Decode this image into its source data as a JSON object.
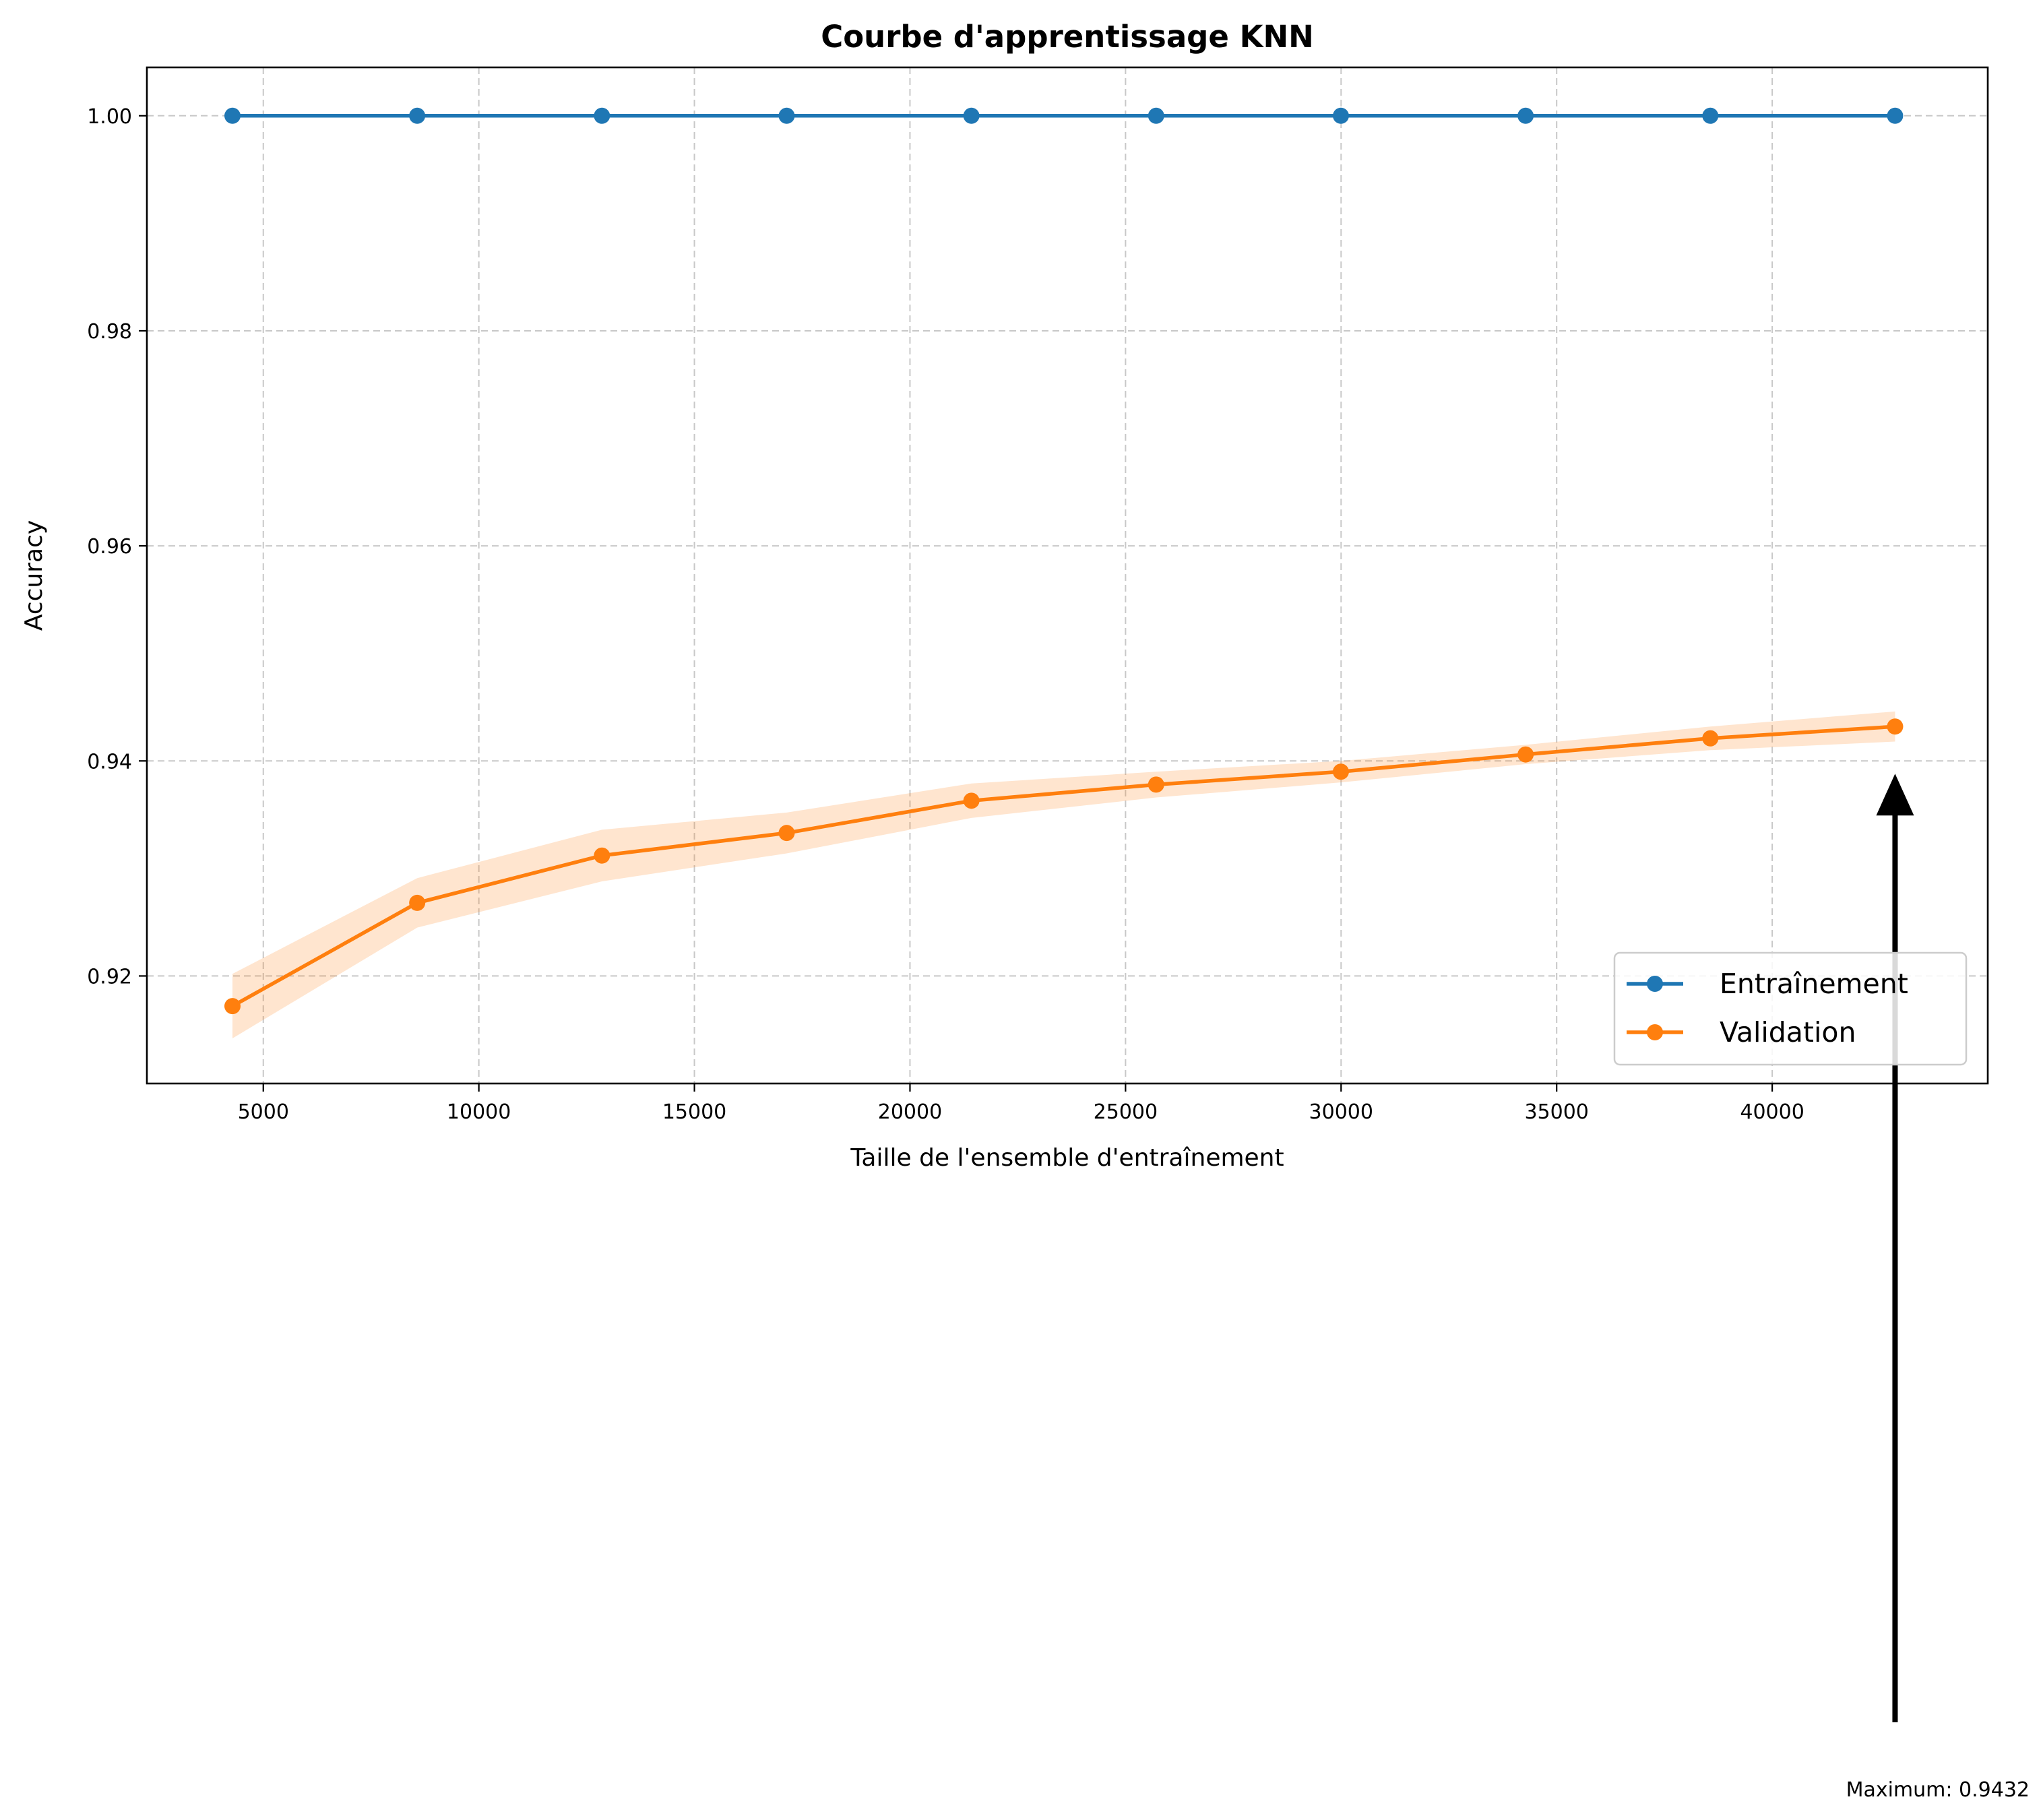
{
  "chart_data": {
    "type": "line",
    "title": "Courbe d'apprentissage KNN",
    "xlabel": "Taille de l'ensemble d'entraînement",
    "ylabel": "Accuracy",
    "xlim": [
      2300,
      45000
    ],
    "ylim": [
      0.91,
      1.0045
    ],
    "xticks": [
      5000,
      10000,
      15000,
      20000,
      25000,
      30000,
      35000,
      40000
    ],
    "xtick_labels": [
      "5000",
      "10000",
      "15000",
      "20000",
      "25000",
      "30000",
      "35000",
      "40000"
    ],
    "yticks": [
      0.92,
      0.94,
      0.96,
      0.98,
      1.0
    ],
    "ytick_labels": [
      "0.92",
      "0.94",
      "0.96",
      "0.98",
      "1.00"
    ],
    "grid": true,
    "legend_position": "lower-right",
    "x": [
      4285,
      8570,
      12855,
      17140,
      21425,
      25710,
      29995,
      34280,
      38565,
      42850
    ],
    "series": [
      {
        "name": "Entraînement",
        "color": "#1f77b4",
        "marker": "circle",
        "values": [
          1.0,
          1.0,
          1.0,
          1.0,
          1.0,
          1.0,
          1.0,
          1.0,
          1.0,
          1.0
        ]
      },
      {
        "name": "Validation",
        "color": "#ff7f0e",
        "marker": "circle",
        "values": [
          0.9172,
          0.9268,
          0.9312,
          0.9333,
          0.9363,
          0.9378,
          0.939,
          0.9406,
          0.9421,
          0.9432
        ],
        "band_lower": [
          0.9142,
          0.9245,
          0.9288,
          0.9314,
          0.9347,
          0.9366,
          0.938,
          0.9397,
          0.941,
          0.9418
        ],
        "band_upper": [
          0.9202,
          0.9291,
          0.9336,
          0.9352,
          0.9379,
          0.939,
          0.94,
          0.9415,
          0.9432,
          0.9446
        ],
        "band_color": "#ff7f0e"
      }
    ],
    "annotation": {
      "text": "Maximum: 0.9432",
      "x": 42850,
      "y": 0.9432
    }
  }
}
